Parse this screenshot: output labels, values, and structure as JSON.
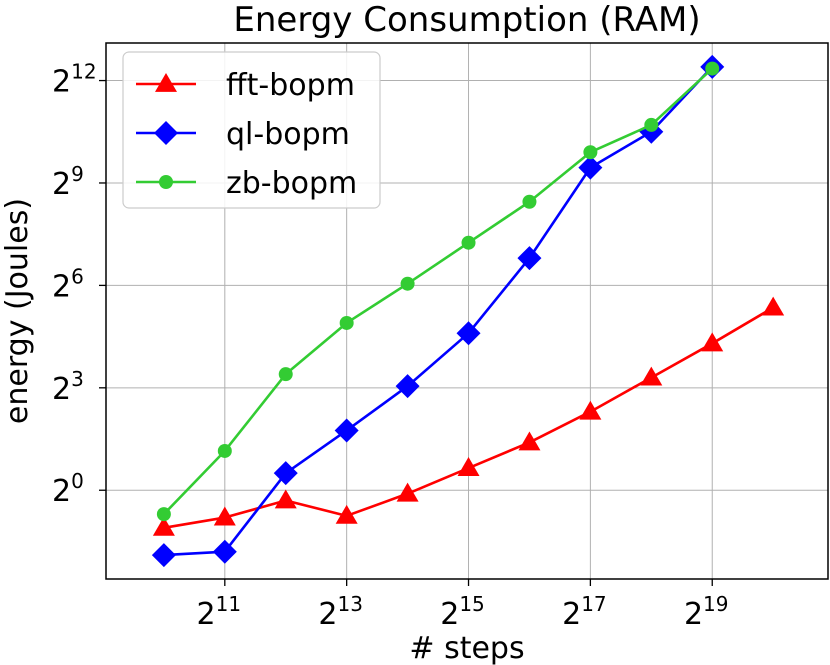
{
  "chart_data": {
    "type": "line",
    "title": "Energy Consumption (RAM)",
    "xlabel": "# steps",
    "ylabel": "energy (Joules)",
    "x_scale": "log2",
    "y_scale": "log2",
    "xlim_log2": [
      9.05,
      20.9
    ],
    "ylim_log2": [
      -2.6,
      13.1
    ],
    "grid": true,
    "legend_position": "top-left",
    "x_ticks": [
      {
        "exp": 11,
        "base": "2",
        "sup": "11"
      },
      {
        "exp": 13,
        "base": "2",
        "sup": "13"
      },
      {
        "exp": 15,
        "base": "2",
        "sup": "15"
      },
      {
        "exp": 17,
        "base": "2",
        "sup": "17"
      },
      {
        "exp": 19,
        "base": "2",
        "sup": "19"
      }
    ],
    "y_ticks": [
      {
        "exp": 0,
        "base": "2",
        "sup": "0"
      },
      {
        "exp": 3,
        "base": "2",
        "sup": "3"
      },
      {
        "exp": 6,
        "base": "2",
        "sup": "6"
      },
      {
        "exp": 9,
        "base": "2",
        "sup": "9"
      },
      {
        "exp": 12,
        "base": "2",
        "sup": "12"
      }
    ],
    "series": [
      {
        "name": "fft-bopm",
        "color": "#ff0000",
        "marker": "triangle",
        "x_log2": [
          10,
          11,
          12,
          13,
          14,
          15,
          16,
          17,
          18,
          19,
          20
        ],
        "y_log2": [
          -1.1,
          -0.8,
          -0.3,
          -0.75,
          -0.1,
          0.65,
          1.4,
          2.3,
          3.3,
          4.3,
          5.35
        ]
      },
      {
        "name": "ql-bopm",
        "color": "#0000ff",
        "marker": "diamond",
        "x_log2": [
          10,
          11,
          12,
          13,
          14,
          15,
          16,
          17,
          18,
          19
        ],
        "y_log2": [
          -1.9,
          -1.8,
          0.5,
          1.75,
          3.05,
          4.6,
          6.8,
          9.45,
          10.5,
          12.4
        ]
      },
      {
        "name": "zb-bopm",
        "color": "#33cc33",
        "marker": "circle",
        "x_log2": [
          10,
          11,
          12,
          13,
          14,
          15,
          16,
          17,
          18,
          19
        ],
        "y_log2": [
          -0.7,
          1.15,
          3.4,
          4.9,
          6.05,
          7.25,
          8.45,
          9.9,
          10.7,
          12.35
        ]
      }
    ]
  }
}
